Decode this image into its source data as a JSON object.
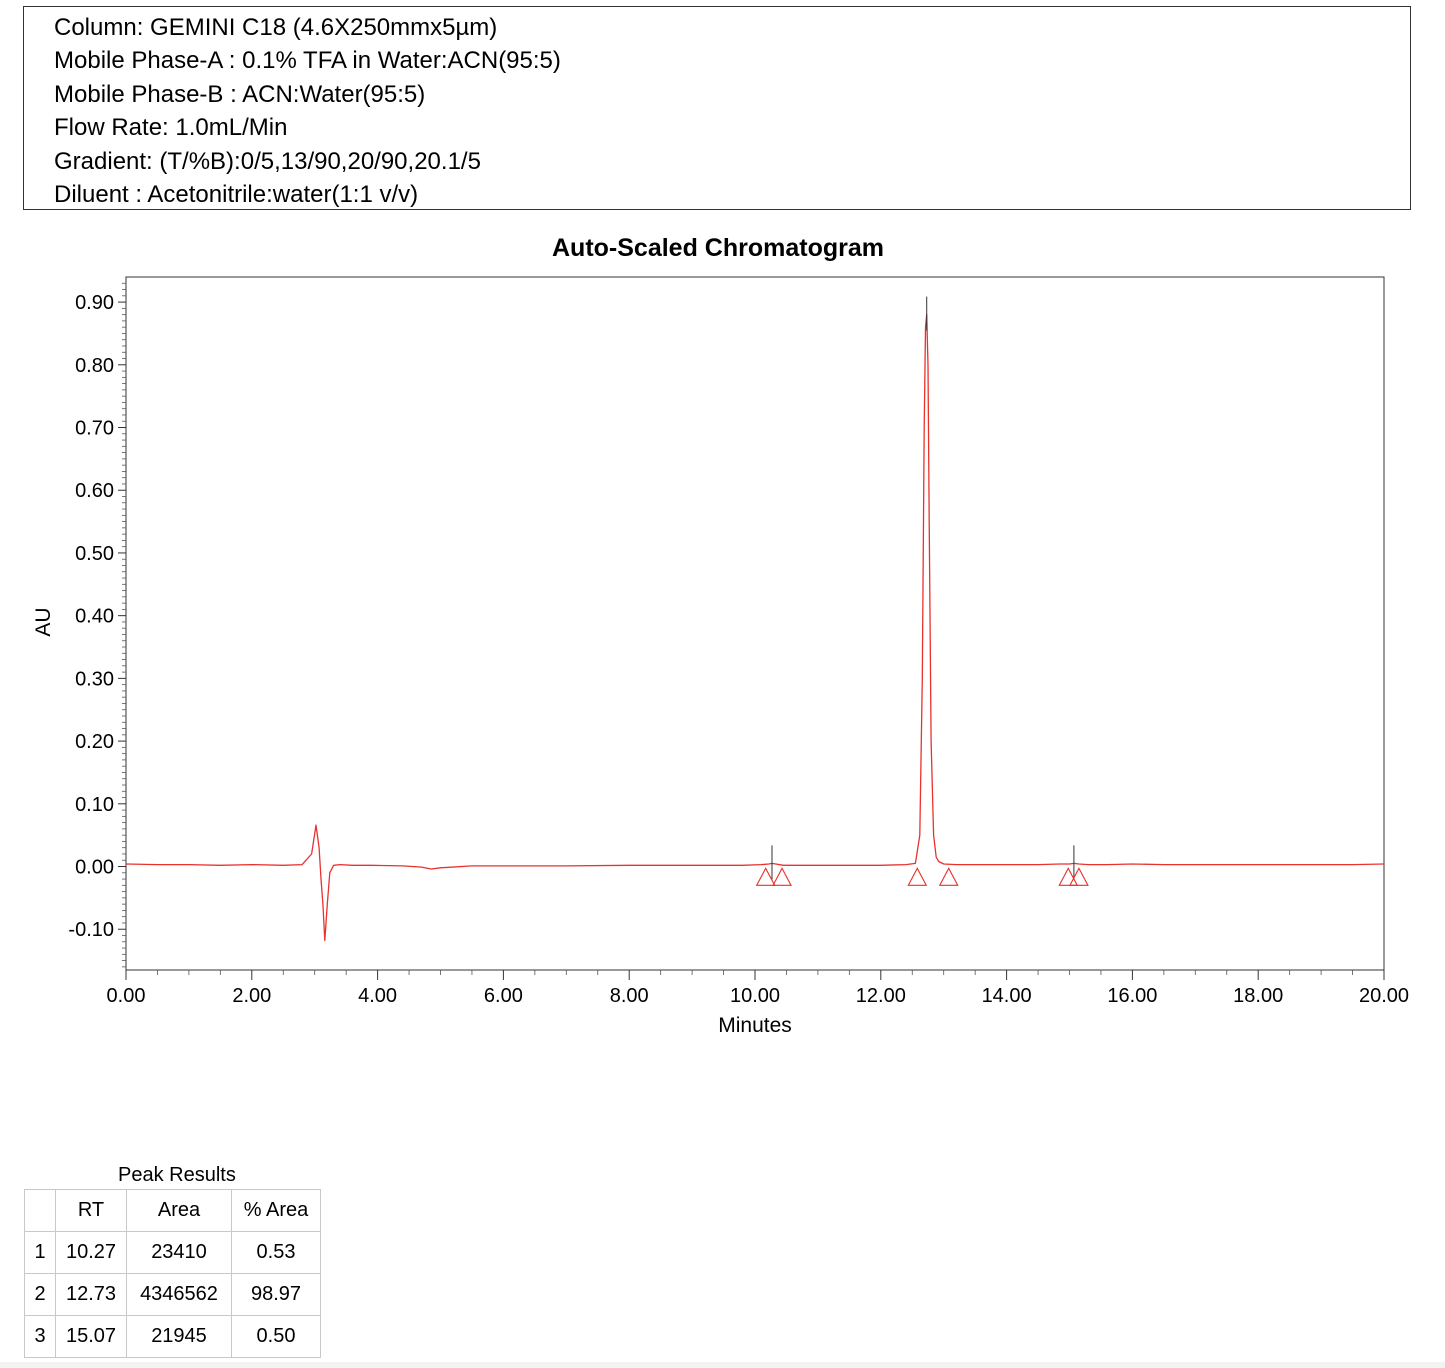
{
  "method": {
    "lines": [
      "Column: GEMINI C18 (4.6X250mmx5µm)",
      "Mobile Phase-A : 0.1% TFA in Water:ACN(95:5)",
      "Mobile Phase-B : ACN:Water(95:5)",
      "Flow Rate: 1.0mL/Min",
      "Gradient: (T/%B):0/5,13/90,20/90,20.1/5",
      "Diluent : Acetonitrile:water(1:1 v/v)"
    ]
  },
  "chart_data": {
    "type": "line",
    "title": "Auto-Scaled Chromatogram",
    "xlabel": "Minutes",
    "ylabel": "AU",
    "xlim": [
      0,
      20
    ],
    "ylim": [
      -0.165,
      0.94
    ],
    "grid": false,
    "line_color": "#e8322e",
    "marker_color": "#e8322e",
    "x_ticks": [
      "0.00",
      "2.00",
      "4.00",
      "6.00",
      "8.00",
      "10.00",
      "12.00",
      "14.00",
      "16.00",
      "18.00",
      "20.00"
    ],
    "x_tick_values": [
      0,
      2,
      4,
      6,
      8,
      10,
      12,
      14,
      16,
      18,
      20
    ],
    "y_ticks": [
      "-0.10",
      "0.00",
      "0.10",
      "0.20",
      "0.30",
      "0.40",
      "0.50",
      "0.60",
      "0.70",
      "0.80",
      "0.90"
    ],
    "y_tick_values": [
      -0.1,
      0,
      0.1,
      0.2,
      0.3,
      0.4,
      0.5,
      0.6,
      0.7,
      0.8,
      0.9
    ],
    "series": [
      {
        "x": [
          0.0,
          0.5,
          1.0,
          1.5,
          2.0,
          2.5,
          2.8,
          2.95,
          3.02,
          3.07,
          3.1,
          3.13,
          3.16,
          3.2,
          3.24,
          3.3,
          3.4,
          3.6,
          3.9,
          4.4,
          4.7,
          4.85,
          5.0,
          5.5,
          6.0,
          7.0,
          8.0,
          9.0,
          9.8,
          10.1,
          10.22,
          10.27,
          10.33,
          10.45,
          10.6,
          11.0,
          11.5,
          12.0,
          12.4,
          12.55,
          12.62,
          12.66,
          12.69,
          12.71,
          12.73,
          12.75,
          12.77,
          12.8,
          12.84,
          12.88,
          12.92,
          13.0,
          13.2,
          13.6,
          14.0,
          14.5,
          14.85,
          15.0,
          15.07,
          15.15,
          15.3,
          15.6,
          16.0,
          16.5,
          17.0,
          18.0,
          19.0,
          19.5,
          20.0
        ],
        "y": [
          0.004,
          0.003,
          0.003,
          0.002,
          0.003,
          0.002,
          0.003,
          0.02,
          0.066,
          0.03,
          -0.02,
          -0.06,
          -0.118,
          -0.06,
          -0.01,
          0.002,
          0.003,
          0.002,
          0.002,
          0.001,
          -0.001,
          -0.004,
          -0.002,
          0.001,
          0.001,
          0.001,
          0.002,
          0.002,
          0.002,
          0.003,
          0.004,
          0.005,
          0.004,
          0.002,
          0.002,
          0.002,
          0.002,
          0.002,
          0.003,
          0.005,
          0.05,
          0.3,
          0.7,
          0.86,
          0.88,
          0.8,
          0.55,
          0.2,
          0.05,
          0.015,
          0.008,
          0.004,
          0.003,
          0.003,
          0.003,
          0.003,
          0.004,
          0.004,
          0.005,
          0.004,
          0.003,
          0.003,
          0.004,
          0.003,
          0.003,
          0.003,
          0.003,
          0.003,
          0.004
        ]
      }
    ],
    "peak_tops": [
      {
        "x": 10.27,
        "y": 0.005
      },
      {
        "x": 12.73,
        "y": 0.88
      },
      {
        "x": 15.07,
        "y": 0.005
      }
    ],
    "integration_markers": [
      10.17,
      10.43,
      12.58,
      13.08,
      14.98,
      15.15
    ]
  },
  "peak_results": {
    "caption": "Peak Results",
    "headers": [
      "",
      "RT",
      "Area",
      "% Area"
    ],
    "rows": [
      {
        "num": "1",
        "rt": "10.27",
        "area": "23410",
        "pct": "0.53"
      },
      {
        "num": "2",
        "rt": "12.73",
        "area": "4346562",
        "pct": "98.97"
      },
      {
        "num": "3",
        "rt": "15.07",
        "area": "21945",
        "pct": "0.50"
      }
    ]
  }
}
